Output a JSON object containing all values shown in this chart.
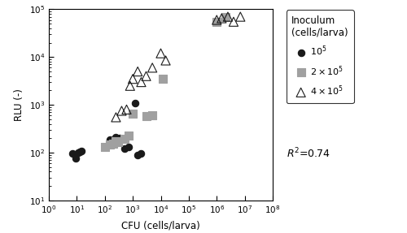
{
  "title": "",
  "xlabel": "CFU (cells/larva)",
  "ylabel": "RLU (-)",
  "xlim_log": [
    0,
    8
  ],
  "ylim_log": [
    1,
    5
  ],
  "legend_title": "Inoculum\n(cells/larva)",
  "r2_text": "$R^2$=0.74",
  "series": {
    "1e5": {
      "label": "$10^5$",
      "marker": "o",
      "facecolor": "#1a1a1a",
      "edgecolor": "#1a1a1a",
      "markersize": 6,
      "x": [
        7,
        9,
        11,
        13,
        15,
        100,
        150,
        250,
        350,
        500,
        700,
        1200,
        1500,
        2000
      ],
      "y": [
        95,
        75,
        100,
        105,
        110,
        130,
        190,
        210,
        200,
        120,
        130,
        1100,
        90,
        95
      ]
    },
    "2e5": {
      "label": "$2\\times10^5$",
      "marker": "s",
      "facecolor": "#a0a0a0",
      "edgecolor": "#a0a0a0",
      "markersize": 7,
      "x": [
        100,
        150,
        200,
        250,
        300,
        500,
        700,
        1000,
        3000,
        5000,
        12000,
        1000000,
        2000000
      ],
      "y": [
        130,
        145,
        155,
        175,
        165,
        195,
        230,
        650,
        580,
        600,
        3500,
        55000,
        70000
      ]
    },
    "4e5": {
      "label": "$4\\times10^5$",
      "marker": "^",
      "facecolor": "none",
      "edgecolor": "#1a1a1a",
      "markersize": 8,
      "x": [
        250,
        400,
        600,
        800,
        1000,
        1500,
        2000,
        3000,
        5000,
        10000,
        15000,
        1000000,
        1500000,
        2500000,
        4000000,
        7000000
      ],
      "y": [
        550,
        750,
        800,
        2500,
        3500,
        5000,
        3000,
        4000,
        6000,
        12000,
        8500,
        60000,
        65000,
        70000,
        55000,
        70000
      ]
    }
  }
}
